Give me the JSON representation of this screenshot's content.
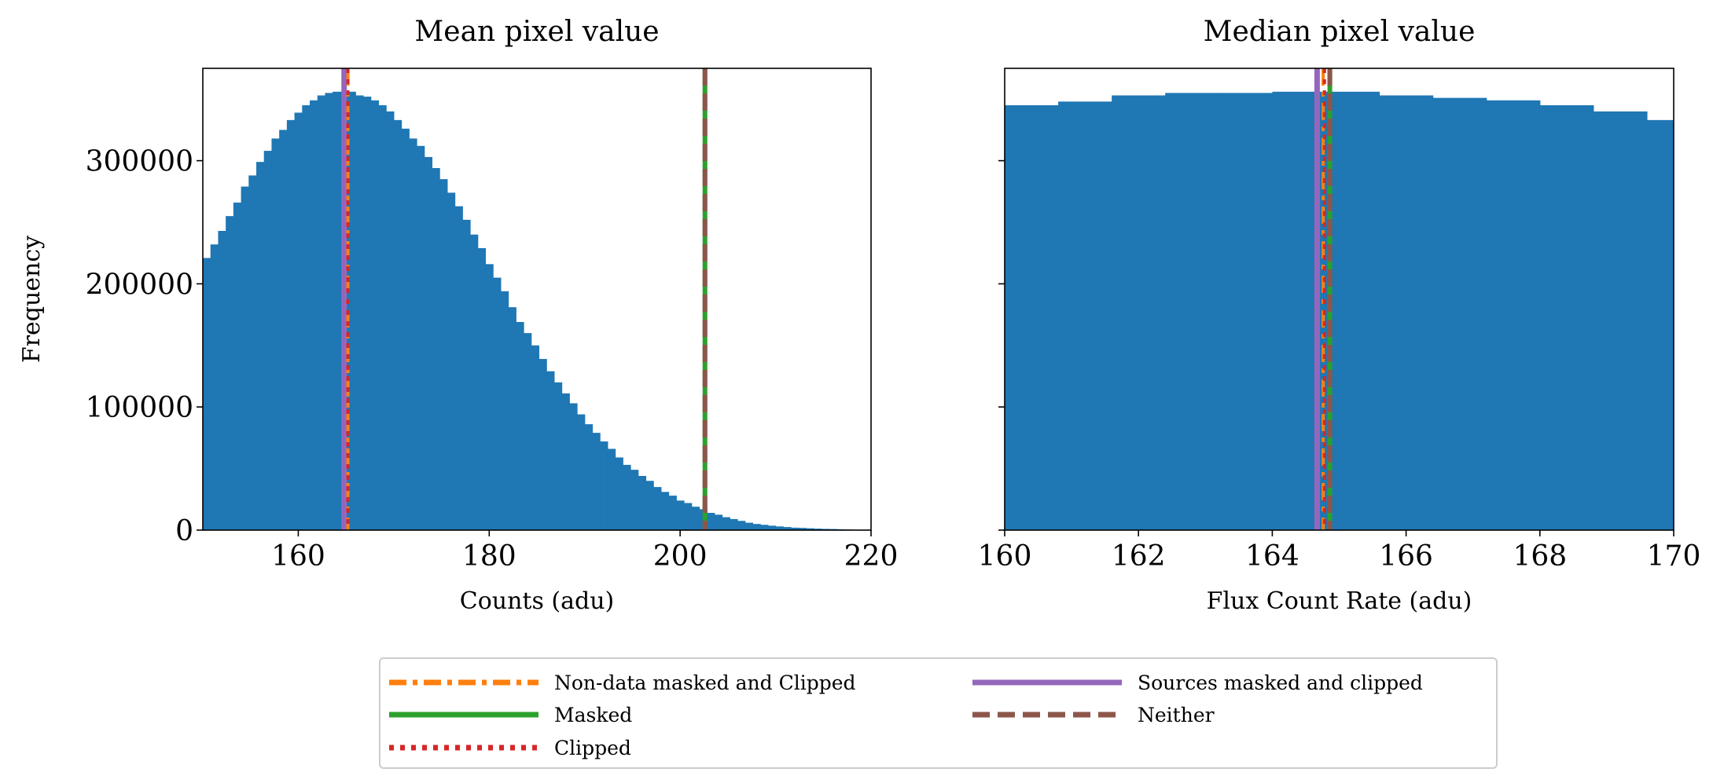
{
  "chart_data": [
    {
      "type": "bar",
      "title": "Mean pixel value",
      "xlabel": "Counts (adu)",
      "ylabel": "Frequency",
      "xlim": [
        150,
        220
      ],
      "ylim": [
        0,
        375000
      ],
      "xticks": [
        "160",
        "180",
        "200",
        "220"
      ],
      "yticks": [
        "0",
        "100000",
        "200000",
        "300000"
      ],
      "bin_start": 150.0,
      "bin_width": 0.8,
      "counts": [
        221000,
        232000,
        243000,
        255000,
        266000,
        279000,
        288000,
        299000,
        308000,
        318000,
        325000,
        333000,
        339000,
        345000,
        349000,
        353000,
        355000,
        356000,
        356000,
        356000,
        353000,
        352000,
        349000,
        345000,
        340000,
        333000,
        326000,
        318000,
        312000,
        303000,
        294000,
        285000,
        274000,
        263000,
        252000,
        240000,
        229000,
        216000,
        205000,
        194000,
        181000,
        169000,
        160000,
        150000,
        139000,
        129000,
        120000,
        111000,
        103000,
        94000,
        86000,
        79000,
        72000,
        66000,
        59000,
        53000,
        49000,
        44000,
        40000,
        35000,
        31000,
        28000,
        24000,
        22000,
        19000,
        17000,
        14000,
        12500,
        10500,
        9000,
        7500,
        6000,
        5000,
        4300,
        3600,
        3000,
        2500,
        2000,
        1800,
        1500,
        1200,
        1000,
        900,
        700,
        500,
        300
      ],
      "bar_color": "#1f77b4",
      "vlines": [
        {
          "series": "Sources masked and clipped",
          "x": 164.8
        },
        {
          "series": "Non-data masked and Clipped",
          "x": 165.2
        },
        {
          "series": "Clipped",
          "x": 165.2
        },
        {
          "series": "Masked",
          "x": 202.6
        },
        {
          "series": "Neither",
          "x": 202.6
        }
      ]
    },
    {
      "type": "bar",
      "title": "Median pixel value",
      "xlabel": "Flux Count Rate (adu)",
      "ylabel": "",
      "xlim": [
        160,
        170
      ],
      "ylim": [
        0,
        375000
      ],
      "xticks": [
        "160",
        "162",
        "164",
        "166",
        "168",
        "170"
      ],
      "yticks": [],
      "bin_start": 160.0,
      "bin_width": 0.8,
      "counts": [
        345000,
        348000,
        353000,
        355000,
        355000,
        356000,
        356000,
        353000,
        351000,
        349000,
        345000,
        340000,
        333000
      ],
      "bar_color": "#1f77b4",
      "vlines": [
        {
          "series": "Sources masked and clipped",
          "x": 164.67
        },
        {
          "series": "Non-data masked and Clipped",
          "x": 164.76
        },
        {
          "series": "Clipped",
          "x": 164.78
        },
        {
          "series": "Masked",
          "x": 164.86
        },
        {
          "series": "Neither",
          "x": 164.86
        }
      ]
    }
  ],
  "legend": {
    "placement": "bottom-center",
    "entries": [
      {
        "label": "Non-data masked and Clipped",
        "color": "#ff7f0e",
        "style": "dashdot"
      },
      {
        "label": "Masked",
        "color": "#2ca02c",
        "style": "solid"
      },
      {
        "label": "Clipped",
        "color": "#d62728",
        "style": "dotted"
      },
      {
        "label": "Sources masked and clipped",
        "color": "#9467bd",
        "style": "solid"
      },
      {
        "label": "Neither",
        "color": "#8c564b",
        "style": "dashed"
      }
    ]
  }
}
